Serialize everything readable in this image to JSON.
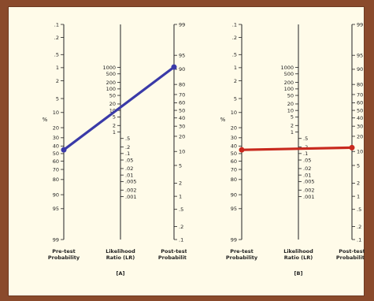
{
  "percent_symbol": "%",
  "pretest_axis": {
    "title_line1": "Pre-test",
    "title_line2": "Probability",
    "ticks": [
      ".1",
      ".2",
      ".5",
      "1",
      "2",
      "5",
      "10",
      "20",
      "30",
      "40",
      "50",
      "60",
      "70",
      "80",
      "90",
      "95",
      "99"
    ]
  },
  "lr_axis": {
    "title_line1": "Likelihood",
    "title_line2": "Ratio (LR)",
    "upper_ticks": [
      "1000",
      "500",
      "200",
      "100",
      "50",
      "20",
      "10",
      "5",
      "2",
      "1"
    ],
    "lower_ticks": [
      ".5",
      ".2",
      ".1",
      ".05",
      ".02",
      ".01",
      ".005",
      ".002",
      ".001"
    ]
  },
  "posttest_axis": {
    "title_line1": "Post-test",
    "title_line2": "Probability",
    "ticks": [
      "99",
      "95",
      "90",
      "80",
      "70",
      "60",
      "50",
      "40",
      "30",
      "20",
      "10",
      "5",
      "2",
      "1",
      ".5",
      ".2",
      ".1"
    ]
  },
  "panels": [
    {
      "label": "[A]",
      "line_color": "#3a3aa8",
      "pretest_value": 45,
      "posttest_value": 91
    },
    {
      "label": "[B]",
      "line_color": "#c8291e",
      "pretest_value": 45,
      "posttest_value": 12
    }
  ]
}
